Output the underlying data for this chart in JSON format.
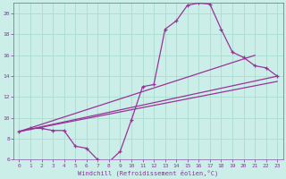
{
  "xlabel": "Windchill (Refroidissement éolien,°C)",
  "bg_color": "#cceee8",
  "grid_color": "#aaddcc",
  "line_color": "#993399",
  "spine_color": "#8855aa",
  "tick_color": "#883399",
  "xlim": [
    -0.5,
    23.5
  ],
  "ylim": [
    6,
    21
  ],
  "yticks": [
    6,
    8,
    10,
    12,
    14,
    16,
    18,
    20
  ],
  "xticks": [
    0,
    1,
    2,
    3,
    4,
    5,
    6,
    7,
    8,
    9,
    10,
    11,
    12,
    13,
    14,
    15,
    16,
    17,
    18,
    19,
    20,
    21,
    22,
    23
  ],
  "series1_x": [
    0,
    1,
    2,
    3,
    4,
    5,
    6,
    7,
    8,
    9,
    10,
    11,
    12,
    13,
    14,
    15,
    16,
    17,
    18,
    19,
    20,
    21,
    22,
    23
  ],
  "series1_y": [
    8.7,
    9.0,
    9.0,
    8.8,
    8.8,
    7.3,
    7.1,
    6.0,
    5.8,
    6.8,
    9.8,
    13.0,
    13.2,
    18.5,
    19.3,
    20.8,
    21.0,
    20.9,
    18.5,
    16.3,
    15.8,
    15.0,
    14.8,
    14.0
  ],
  "series2_x": [
    0,
    23
  ],
  "series2_y": [
    8.7,
    14.0
  ],
  "series3_x": [
    0,
    23
  ],
  "series3_y": [
    8.7,
    13.5
  ],
  "series4_x": [
    0,
    21
  ],
  "series4_y": [
    8.7,
    16.0
  ]
}
